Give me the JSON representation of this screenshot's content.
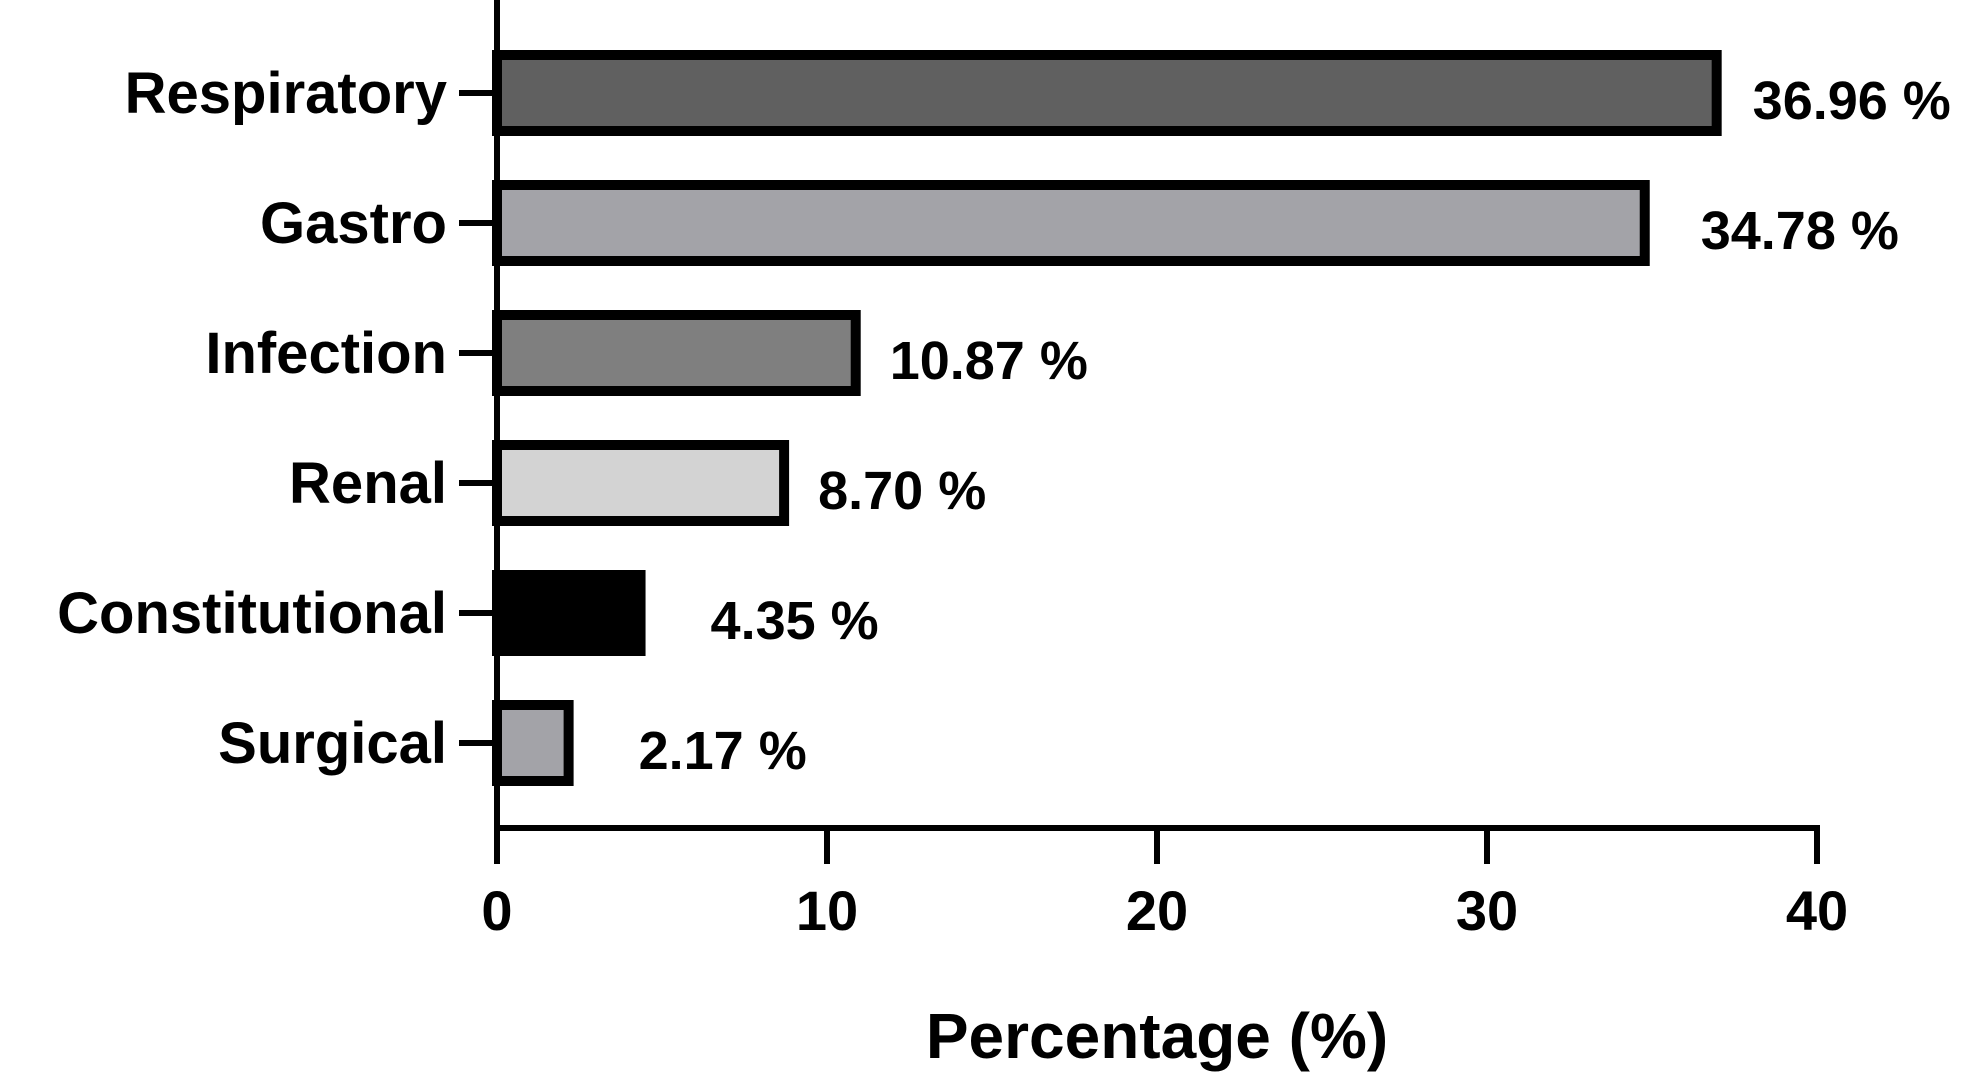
{
  "chart_data": {
    "type": "bar",
    "orientation": "horizontal",
    "categories": [
      "Respiratory",
      "Gastro",
      "Infection",
      "Renal",
      "Constitutional",
      "Surgical"
    ],
    "values": [
      36.96,
      34.78,
      10.87,
      8.7,
      4.35,
      2.17
    ],
    "value_labels": [
      "36.96 %",
      "34.78 %",
      "10.87 %",
      "8.70 %",
      "4.35 %",
      "2.17 %"
    ],
    "bar_colors": [
      "#606060",
      "#a3a3a8",
      "#7f7f7f",
      "#d3d3d3",
      "#000000",
      "#a3a3a8"
    ],
    "xlabel": "Percentage (%)",
    "ylabel": "",
    "title": "",
    "xlim": [
      0,
      40
    ],
    "xticks": [
      0,
      10,
      20,
      30,
      40
    ],
    "xtick_labels": [
      "0",
      "10",
      "20",
      "30",
      "40"
    ],
    "grid": false,
    "legend": "none"
  }
}
